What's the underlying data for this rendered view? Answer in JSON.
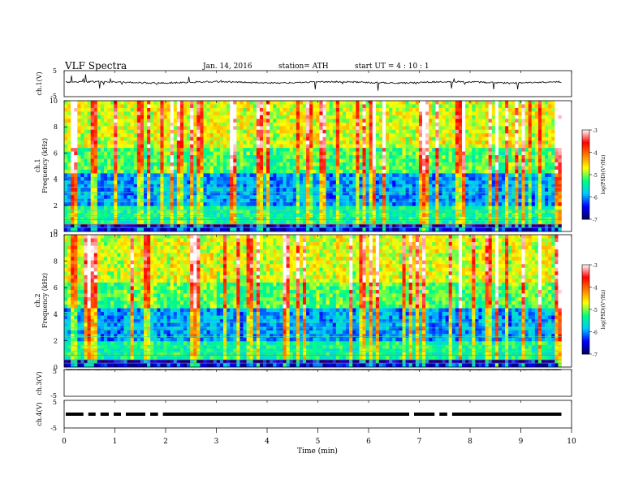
{
  "header": {
    "title": "VLF  Spectra",
    "date": "Jan. 14, 2016",
    "station": "station= ATH",
    "start": "start  UT  =   4  : 10 : 1"
  },
  "chart_data": [
    {
      "type": "line",
      "id": "ch1-waveform",
      "ylabel": "ch.1(V)",
      "ylim": [
        -5,
        5
      ],
      "yticks": [
        "5",
        "-5"
      ],
      "xlim": [
        0,
        10
      ],
      "baseline": 0.5,
      "series_color": "#000000"
    },
    {
      "type": "heatmap",
      "id": "ch1-spectrogram",
      "ylabel": [
        "ch.1",
        "Frequency  (kHz)"
      ],
      "ylim": [
        0,
        10
      ],
      "yticks": [
        "0",
        "2",
        "4",
        "6",
        "8",
        "10"
      ],
      "xlim": [
        0,
        10
      ],
      "data_end_min": 9.8,
      "colorbar": {
        "label": "log(PSD)(V²/Hz)",
        "range": [
          -7,
          -3
        ],
        "ticks": [
          "-3",
          "-4",
          "-5",
          "-6",
          "-7"
        ],
        "colors": [
          "#000060",
          "#0000ff",
          "#00c8ff",
          "#00ff80",
          "#ffff00",
          "#ff8000",
          "#ff0000",
          "#ffffff"
        ]
      }
    },
    {
      "type": "heatmap",
      "id": "ch2-spectrogram",
      "ylabel": [
        "ch.2",
        "Frequency  (kHz)"
      ],
      "ylim": [
        0,
        10
      ],
      "yticks": [
        "0",
        "2",
        "4",
        "6",
        "8",
        "10"
      ],
      "xlim": [
        0,
        10
      ],
      "data_end_min": 9.8,
      "colorbar": {
        "label": "log(PSD)(V²/Hz)",
        "range": [
          -7,
          -3
        ],
        "ticks": [
          "-3",
          "-4",
          "-5",
          "-6",
          "-7"
        ],
        "colors": [
          "#000060",
          "#0000ff",
          "#00c8ff",
          "#00ff80",
          "#ffff00",
          "#ff8000",
          "#ff0000",
          "#ffffff"
        ]
      }
    },
    {
      "type": "line",
      "id": "ch3-waveform",
      "ylabel": "ch.3(V)",
      "ylim": [
        -5,
        5
      ],
      "yticks": [
        "5",
        "-5"
      ],
      "xlim": [
        0,
        10
      ],
      "baseline": 4.8,
      "series_color": "#000000"
    },
    {
      "type": "line",
      "id": "ch4-waveform",
      "ylabel": "ch.4(V)",
      "ylim": [
        -5,
        5
      ],
      "yticks": [
        "5",
        "-5"
      ],
      "xlim": [
        0,
        10
      ],
      "baseline": 0,
      "series_color": "#000000"
    }
  ],
  "xaxis": {
    "label": "Time  (min)",
    "ticks": [
      "0",
      "1",
      "2",
      "3",
      "4",
      "5",
      "6",
      "7",
      "8",
      "9",
      "10"
    ]
  }
}
